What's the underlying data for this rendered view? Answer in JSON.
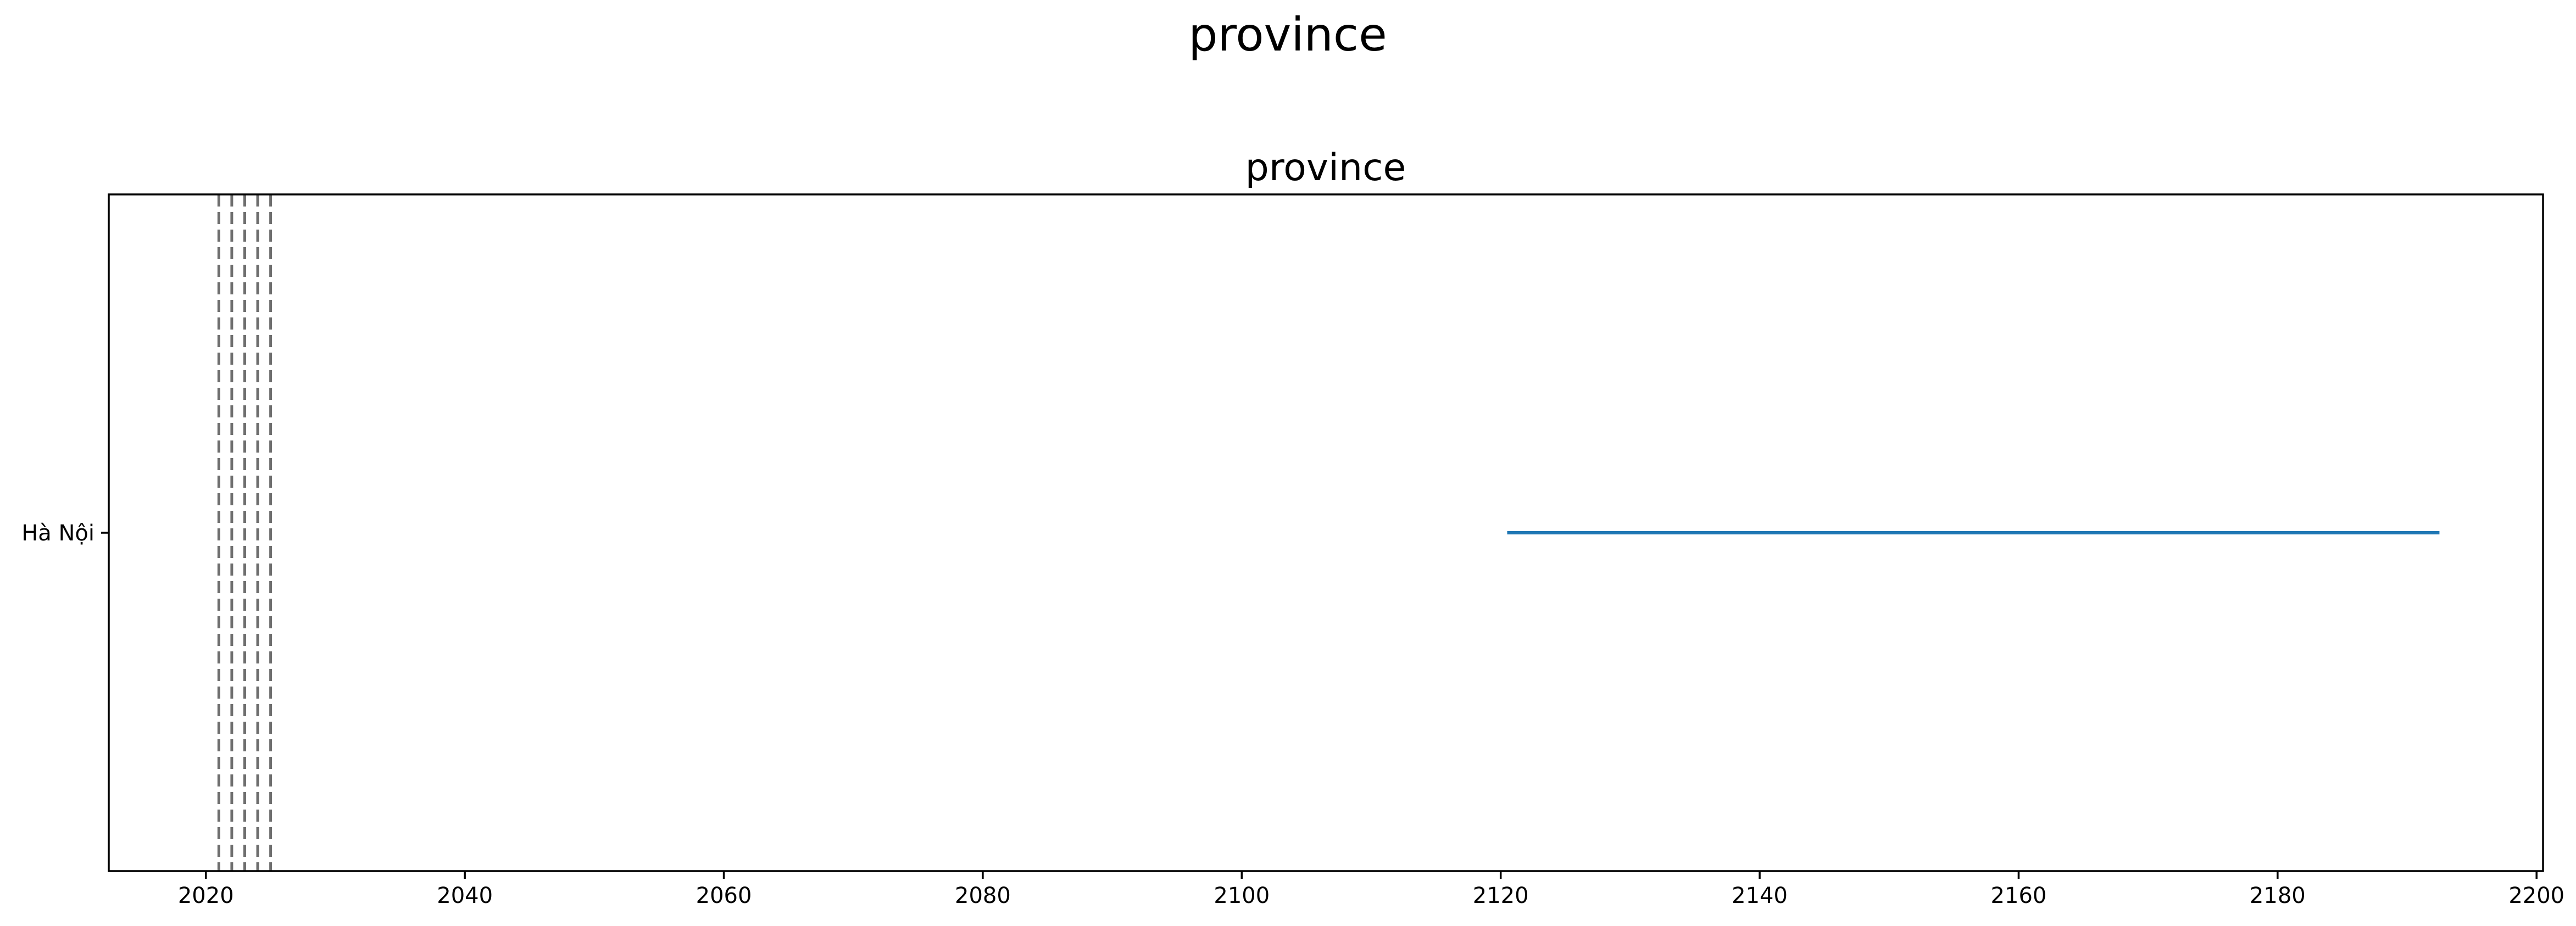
{
  "figure": {
    "suptitle": "province"
  },
  "chart_data": {
    "type": "line",
    "title": "province",
    "xlabel": "",
    "ylabel": "",
    "xlim": [
      2012.5,
      2200.5
    ],
    "x_ticks": [
      2020,
      2040,
      2060,
      2080,
      2100,
      2120,
      2140,
      2160,
      2180,
      2200
    ],
    "categories": [
      "Hà Nội"
    ],
    "series": [
      {
        "category": "Hà Nội",
        "x": [
          2120.5,
          2192.5
        ],
        "color": "#1f77b4"
      }
    ],
    "reference_lines": {
      "x": [
        2021,
        2022,
        2023,
        2024,
        2025
      ],
      "style": "dashed",
      "color": "#6e6e6e"
    },
    "grid": false,
    "legend": "none"
  }
}
